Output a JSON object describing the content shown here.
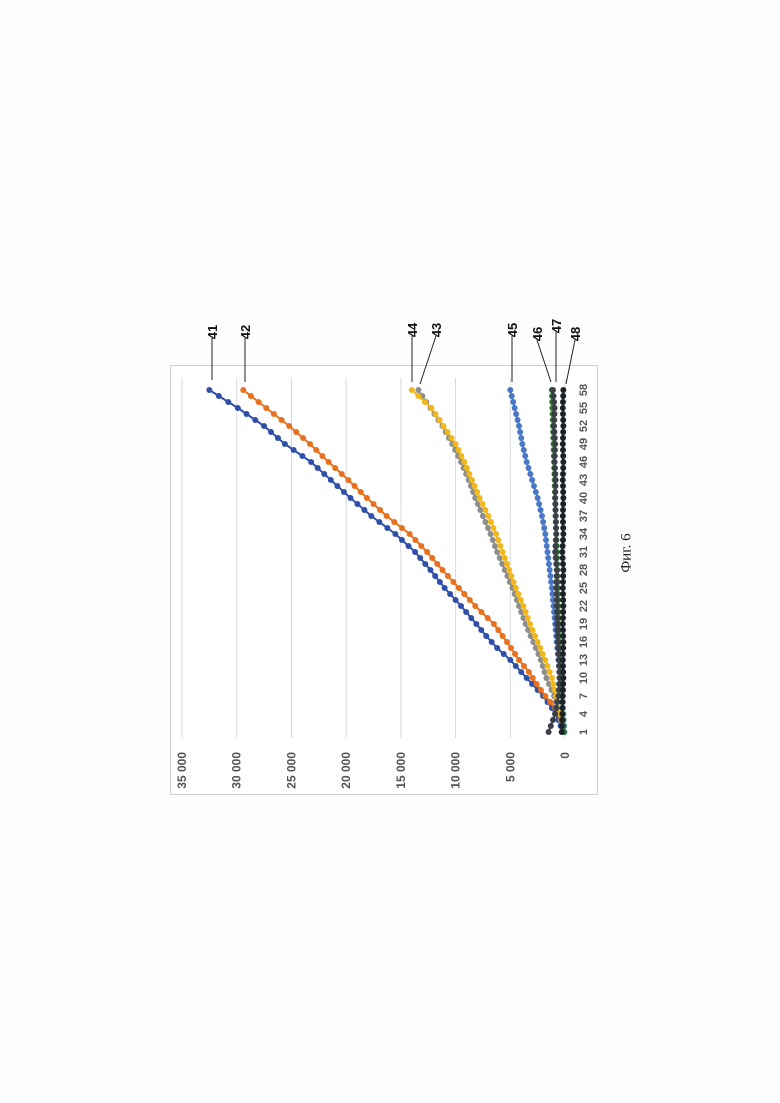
{
  "caption": "Фиг. 6",
  "chart_data": {
    "type": "line",
    "orientation": "rotated-90-ccw",
    "x_ticks": [
      "1",
      "4",
      "7",
      "10",
      "13",
      "16",
      "19",
      "22",
      "25",
      "28",
      "31",
      "34",
      "37",
      "40",
      "43",
      "46",
      "49",
      "52",
      "55",
      "58"
    ],
    "y_ticks": [
      "0",
      "5 000",
      "10 000",
      "15 000",
      "20 000",
      "25 000",
      "30 000",
      "35 000"
    ],
    "ylim": [
      0,
      35000
    ],
    "xlim": [
      1,
      58
    ],
    "grid": true,
    "series": [
      {
        "name": "41",
        "color": "#2f4fa8",
        "points": [
          [
            1,
            200
          ],
          [
            3,
            600
          ],
          [
            5,
            1200
          ],
          [
            7,
            2000
          ],
          [
            9,
            3000
          ],
          [
            11,
            4000
          ],
          [
            13,
            5000
          ],
          [
            15,
            6200
          ],
          [
            17,
            7200
          ],
          [
            19,
            8100
          ],
          [
            22,
            9500
          ],
          [
            25,
            11000
          ],
          [
            28,
            12300
          ],
          [
            31,
            13700
          ],
          [
            34,
            15500
          ],
          [
            37,
            17700
          ],
          [
            40,
            19600
          ],
          [
            43,
            21400
          ],
          [
            46,
            23200
          ],
          [
            49,
            25600
          ],
          [
            52,
            27500
          ],
          [
            55,
            29900
          ],
          [
            58,
            32500
          ]
        ]
      },
      {
        "name": "42",
        "color": "#e8711f",
        "points": [
          [
            1,
            150
          ],
          [
            3,
            400
          ],
          [
            5,
            900
          ],
          [
            7,
            1800
          ],
          [
            9,
            2600
          ],
          [
            11,
            3300
          ],
          [
            13,
            4200
          ],
          [
            16,
            5300
          ],
          [
            19,
            6500
          ],
          [
            22,
            8200
          ],
          [
            25,
            9700
          ],
          [
            28,
            11200
          ],
          [
            31,
            12600
          ],
          [
            34,
            14200
          ],
          [
            37,
            16300
          ],
          [
            40,
            18100
          ],
          [
            43,
            19800
          ],
          [
            46,
            21600
          ],
          [
            49,
            23300
          ],
          [
            52,
            25200
          ],
          [
            55,
            27300
          ],
          [
            58,
            29400
          ]
        ]
      },
      {
        "name": "43",
        "color": "#8e8e8e",
        "points": [
          [
            1,
            100
          ],
          [
            4,
            500
          ],
          [
            7,
            1000
          ],
          [
            10,
            1700
          ],
          [
            13,
            2200
          ],
          [
            16,
            2900
          ],
          [
            19,
            3600
          ],
          [
            22,
            4200
          ],
          [
            25,
            4800
          ],
          [
            28,
            5500
          ],
          [
            31,
            6200
          ],
          [
            34,
            6800
          ],
          [
            37,
            7500
          ],
          [
            40,
            8200
          ],
          [
            43,
            8800
          ],
          [
            46,
            9500
          ],
          [
            49,
            10300
          ],
          [
            52,
            11200
          ],
          [
            55,
            12300
          ],
          [
            58,
            13400
          ]
        ]
      },
      {
        "name": "44",
        "color": "#f2b81b",
        "points": [
          [
            1,
            100
          ],
          [
            4,
            400
          ],
          [
            7,
            800
          ],
          [
            10,
            1200
          ],
          [
            13,
            1800
          ],
          [
            16,
            2500
          ],
          [
            19,
            3200
          ],
          [
            22,
            3800
          ],
          [
            25,
            4500
          ],
          [
            28,
            5100
          ],
          [
            31,
            5700
          ],
          [
            34,
            6300
          ],
          [
            37,
            7000
          ],
          [
            40,
            7800
          ],
          [
            43,
            8500
          ],
          [
            46,
            9200
          ],
          [
            49,
            10000
          ],
          [
            52,
            11100
          ],
          [
            55,
            12200
          ],
          [
            58,
            14000
          ]
        ]
      },
      {
        "name": "45",
        "color": "#4a78c5",
        "points": [
          [
            1,
            50
          ],
          [
            4,
            150
          ],
          [
            7,
            300
          ],
          [
            10,
            450
          ],
          [
            13,
            600
          ],
          [
            16,
            750
          ],
          [
            19,
            900
          ],
          [
            22,
            1050
          ],
          [
            25,
            1200
          ],
          [
            28,
            1400
          ],
          [
            31,
            1600
          ],
          [
            34,
            1800
          ],
          [
            37,
            2100
          ],
          [
            40,
            2500
          ],
          [
            43,
            3000
          ],
          [
            46,
            3500
          ],
          [
            49,
            3900
          ],
          [
            52,
            4200
          ],
          [
            55,
            4600
          ],
          [
            58,
            5000
          ]
        ]
      },
      {
        "name": "46",
        "color": "#2f7a2f",
        "points": [
          [
            1,
            100
          ],
          [
            4,
            200
          ],
          [
            7,
            300
          ],
          [
            10,
            400
          ],
          [
            13,
            450
          ],
          [
            16,
            500
          ],
          [
            19,
            550
          ],
          [
            22,
            600
          ],
          [
            25,
            650
          ],
          [
            28,
            700
          ],
          [
            31,
            750
          ],
          [
            34,
            800
          ],
          [
            37,
            850
          ],
          [
            40,
            900
          ],
          [
            43,
            950
          ],
          [
            46,
            1000
          ],
          [
            49,
            1050
          ],
          [
            52,
            1100
          ],
          [
            55,
            1150
          ],
          [
            58,
            1200
          ]
        ]
      },
      {
        "name": "47",
        "color": "#3a3f46",
        "points": [
          [
            1,
            1500
          ],
          [
            4,
            900
          ],
          [
            7,
            600
          ],
          [
            10,
            500
          ],
          [
            13,
            550
          ],
          [
            16,
            650
          ],
          [
            19,
            700
          ],
          [
            22,
            750
          ],
          [
            25,
            800
          ],
          [
            28,
            750
          ],
          [
            31,
            900
          ],
          [
            34,
            800
          ],
          [
            37,
            850
          ],
          [
            40,
            900
          ],
          [
            43,
            850
          ],
          [
            46,
            950
          ],
          [
            49,
            900
          ],
          [
            52,
            1000
          ],
          [
            55,
            950
          ],
          [
            58,
            1100
          ]
        ]
      },
      {
        "name": "48",
        "color": "#1e2228",
        "points": [
          [
            1,
            300
          ],
          [
            4,
            250
          ],
          [
            7,
            200
          ],
          [
            10,
            150
          ],
          [
            13,
            200
          ],
          [
            16,
            150
          ],
          [
            19,
            200
          ],
          [
            22,
            150
          ],
          [
            25,
            200
          ],
          [
            28,
            150
          ],
          [
            31,
            250
          ],
          [
            34,
            150
          ],
          [
            37,
            200
          ],
          [
            40,
            150
          ],
          [
            43,
            200
          ],
          [
            46,
            150
          ],
          [
            49,
            200
          ],
          [
            52,
            150
          ],
          [
            55,
            200
          ],
          [
            58,
            150
          ]
        ]
      }
    ],
    "labels": [
      "41",
      "42",
      "44",
      "43",
      "45",
      "46",
      "47",
      "48"
    ]
  }
}
